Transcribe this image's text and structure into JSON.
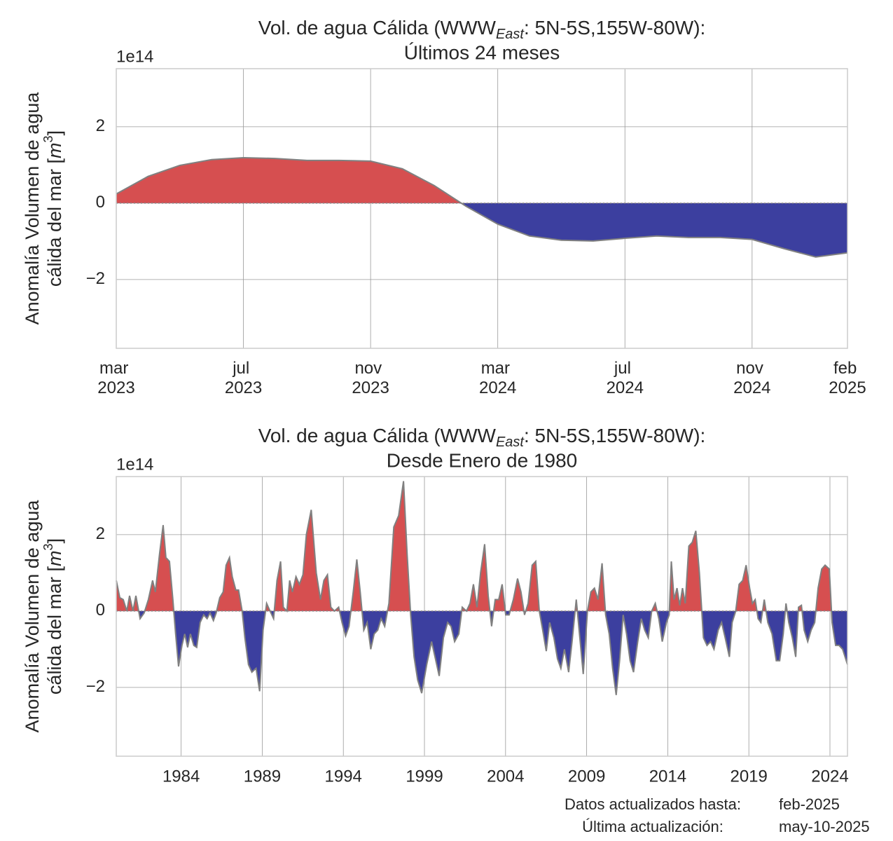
{
  "chart_data": [
    {
      "type": "area",
      "title": {
        "pre": "Vol. de agua Cálida (WWW",
        "sub": "East",
        "post": ": 5N-5S,155W-80W):"
      },
      "subtitle": "Últimos 24 meses",
      "ylabel": {
        "line1": "Anomalía Volumen de agua",
        "line2_pre": "cálida del mar [",
        "unit": "m",
        "power": "3",
        "line2_post": "]"
      },
      "offset_label": "1e14",
      "categories": [
        "mar 2023",
        null,
        null,
        null,
        "jul 2023",
        null,
        null,
        null,
        "nov 2023",
        null,
        null,
        null,
        "mar 2024",
        null,
        null,
        null,
        "jul 2024",
        null,
        null,
        null,
        "nov 2024",
        null,
        null,
        "feb 2025"
      ],
      "values": [
        0.24,
        0.7,
        0.99,
        1.14,
        1.19,
        1.17,
        1.12,
        1.12,
        1.1,
        0.9,
        0.46,
        -0.08,
        -0.55,
        -0.86,
        -0.97,
        -0.99,
        -0.92,
        -0.86,
        -0.9,
        -0.9,
        -0.95,
        -1.19,
        -1.41,
        -1.3
      ],
      "ylim": [
        -3.8,
        3.52
      ],
      "yticks": [
        {
          "value": -2,
          "label": "−2"
        },
        0,
        2
      ],
      "grid": true,
      "colors": {
        "positive": "#d64f50",
        "negative": "#3c3f9f",
        "line": "#808080"
      }
    },
    {
      "type": "area",
      "title": {
        "pre": "Vol. de agua Cálida (WWW",
        "sub": "East",
        "post": ": 5N-5S,155W-80W):"
      },
      "subtitle": "Desde Enero de 1980",
      "ylabel": {
        "line1": "Anomalía Volumen de agua",
        "line2_pre": "cálida del mar [",
        "unit": "m",
        "power": "3",
        "line2_post": "]"
      },
      "offset_label": "1e14",
      "x": [
        1980.0,
        1980.22,
        1980.43,
        1980.65,
        1980.82,
        1981.03,
        1981.21,
        1981.47,
        1981.72,
        1981.98,
        1982.24,
        1982.41,
        1982.67,
        1982.89,
        1983.06,
        1983.28,
        1983.49,
        1983.66,
        1983.84,
        1984.05,
        1984.22,
        1984.4,
        1984.57,
        1984.78,
        1984.96,
        1985.17,
        1985.39,
        1985.6,
        1985.78,
        1985.99,
        1986.16,
        1986.38,
        1986.59,
        1986.77,
        1986.98,
        1987.15,
        1987.37,
        1987.54,
        1987.76,
        1987.93,
        1988.15,
        1988.36,
        1988.62,
        1988.84,
        1989.05,
        1989.27,
        1989.48,
        1989.7,
        1989.91,
        1990.13,
        1990.3,
        1990.52,
        1990.69,
        1990.86,
        1991.08,
        1991.29,
        1991.51,
        1991.72,
        1992.02,
        1992.33,
        1992.59,
        1992.8,
        1993.02,
        1993.23,
        1993.45,
        1993.71,
        1993.92,
        1994.14,
        1994.35,
        1994.61,
        1994.83,
        1995.04,
        1995.26,
        1995.47,
        1995.69,
        1995.9,
        1996.12,
        1996.33,
        1996.55,
        1996.81,
        1997.11,
        1997.41,
        1997.71,
        1997.93,
        1998.15,
        1998.36,
        1998.58,
        1998.83,
        1999.14,
        1999.44,
        1999.65,
        1999.91,
        2000.17,
        2000.43,
        2000.64,
        2000.86,
        2001.12,
        2001.33,
        2001.59,
        2001.81,
        2002.02,
        2002.24,
        2002.46,
        2002.71,
        2002.93,
        2003.14,
        2003.36,
        2003.58,
        2003.79,
        2004.01,
        2004.22,
        2004.48,
        2004.74,
        2004.95,
        2005.17,
        2005.39,
        2005.64,
        2005.86,
        2006.08,
        2006.29,
        2006.51,
        2006.72,
        2006.98,
        2007.2,
        2007.41,
        2007.63,
        2007.89,
        2008.1,
        2008.36,
        2008.58,
        2008.79,
        2009.05,
        2009.26,
        2009.48,
        2009.7,
        2009.95,
        2010.17,
        2010.39,
        2010.6,
        2010.82,
        2011.03,
        2011.25,
        2011.46,
        2011.68,
        2011.89,
        2012.15,
        2012.37,
        2012.58,
        2012.8,
        2013.01,
        2013.23,
        2013.45,
        2013.66,
        2013.92,
        2014.09,
        2014.22,
        2014.39,
        2014.57,
        2014.74,
        2014.91,
        2015.08,
        2015.3,
        2015.51,
        2015.73,
        2015.95,
        2016.2,
        2016.42,
        2016.64,
        2016.85,
        2017.11,
        2017.32,
        2017.54,
        2017.8,
        2017.97,
        2018.19,
        2018.4,
        2018.62,
        2018.83,
        2019.05,
        2019.22,
        2019.39,
        2019.57,
        2019.74,
        2019.95,
        2020.17,
        2020.43,
        2020.69,
        2020.9,
        2021.12,
        2021.29,
        2021.46,
        2021.68,
        2021.89,
        2022.06,
        2022.24,
        2022.41,
        2022.63,
        2022.84,
        2023.06,
        2023.27,
        2023.49,
        2023.7,
        2023.96,
        2024.13,
        2024.35,
        2024.56,
        2024.78,
        2025.08
      ],
      "values": [
        0.8,
        0.35,
        0.3,
        0.0,
        0.4,
        0.0,
        0.4,
        -0.2,
        -0.05,
        0.3,
        0.8,
        0.5,
        1.5,
        2.25,
        1.4,
        1.3,
        0.3,
        -0.6,
        -1.45,
        -0.9,
        -0.6,
        -0.95,
        -0.6,
        -0.9,
        -0.95,
        -0.3,
        -0.1,
        -0.2,
        -0.05,
        -0.25,
        -0.05,
        0.35,
        0.5,
        1.2,
        1.4,
        0.9,
        0.55,
        0.55,
        0.0,
        -0.7,
        -1.4,
        -1.6,
        -1.5,
        -2.1,
        -0.5,
        0.2,
        0.0,
        -0.2,
        0.8,
        1.3,
        0.1,
        0.0,
        0.8,
        0.5,
        0.9,
        0.7,
        0.95,
        2.0,
        2.65,
        1.0,
        0.3,
        0.8,
        0.95,
        0.1,
        0.0,
        0.1,
        -0.3,
        -0.65,
        -0.4,
        0.5,
        1.35,
        0.5,
        -0.5,
        -0.3,
        -1.0,
        -0.6,
        -0.5,
        -0.2,
        -0.4,
        0.2,
        2.2,
        2.5,
        3.4,
        1.5,
        -0.1,
        -1.2,
        -1.8,
        -2.15,
        -1.4,
        -0.8,
        -1.2,
        -1.7,
        -0.7,
        -0.3,
        -0.4,
        -0.8,
        -0.6,
        0.1,
        0.0,
        0.2,
        0.7,
        0.1,
        1.0,
        1.75,
        0.4,
        -0.4,
        0.3,
        0.3,
        0.7,
        -0.1,
        -0.1,
        0.3,
        0.85,
        0.5,
        -0.1,
        0.2,
        1.2,
        1.3,
        0.0,
        -0.5,
        -1.05,
        -0.3,
        -0.7,
        -1.25,
        -1.5,
        -1.0,
        -1.6,
        -0.8,
        0.3,
        -0.7,
        -1.65,
        0.0,
        0.5,
        0.6,
        0.3,
        1.25,
        -0.1,
        -0.6,
        -1.5,
        -2.2,
        -1.3,
        -0.1,
        -0.6,
        -1.3,
        -1.6,
        -0.8,
        -0.2,
        -0.5,
        -0.7,
        0.0,
        0.2,
        -0.2,
        -0.8,
        -0.3,
        -0.1,
        1.3,
        0.3,
        0.6,
        0.15,
        0.6,
        0.2,
        1.7,
        1.8,
        2.1,
        1.0,
        -0.7,
        -0.9,
        -0.8,
        -1.0,
        -0.5,
        -0.3,
        -0.7,
        -1.2,
        -0.3,
        0.0,
        0.7,
        0.8,
        1.2,
        0.6,
        0.2,
        0.3,
        -0.2,
        -0.3,
        0.3,
        -0.3,
        -0.6,
        -1.3,
        -1.3,
        -0.6,
        0.2,
        -0.3,
        -0.7,
        -1.2,
        0.1,
        0.15,
        -0.5,
        -0.8,
        -0.5,
        -0.3,
        0.6,
        1.1,
        1.2,
        1.1,
        -0.3,
        -0.9,
        -0.9,
        -1.0,
        -1.4
      ],
      "xlim": [
        1980.0,
        2025.08
      ],
      "xticks": [
        1984,
        1989,
        1994,
        1999,
        2004,
        2009,
        2014,
        2019,
        2024
      ],
      "ylim": [
        -3.8,
        3.52
      ],
      "yticks": [
        {
          "value": -2,
          "label": "−2"
        },
        0,
        2
      ],
      "grid": true,
      "colors": {
        "positive": "#d64f50",
        "negative": "#3c3f9f",
        "line": "#808080"
      }
    }
  ],
  "footer": {
    "updated_label": "Datos actualizados hasta:",
    "updated_value": "feb-2025",
    "last_label": "Última actualización:",
    "last_value": "may-10-2025"
  }
}
